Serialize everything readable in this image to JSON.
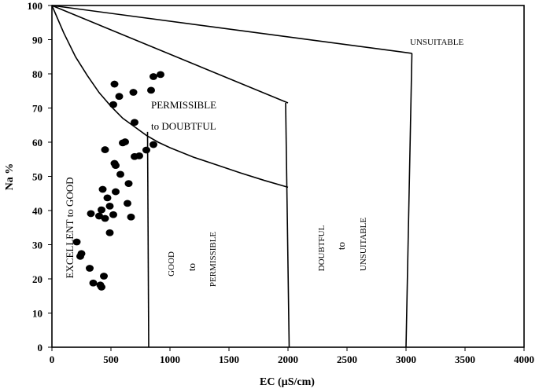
{
  "chart_data": {
    "type": "scatter",
    "xlabel": "EC (µS/cm)",
    "ylabel": "Na %",
    "xlim": [
      0,
      4000
    ],
    "ylim": [
      0,
      100
    ],
    "x_ticks": [
      0,
      500,
      1000,
      1500,
      2000,
      2500,
      3000,
      3500,
      4000
    ],
    "y_ticks": [
      0,
      10,
      20,
      30,
      40,
      50,
      60,
      70,
      80,
      90,
      100
    ],
    "x_tick_labels": [
      "0",
      "500",
      "1000",
      "1500",
      "2000",
      "2500",
      "3000",
      "3500",
      "4000"
    ],
    "y_tick_labels": [
      "0",
      "10",
      "20",
      "30",
      "40",
      "50",
      "60",
      "70",
      "80",
      "90",
      "100"
    ],
    "grid": false,
    "region_labels": {
      "excellent_to_good": "EXCELLENT to GOOD",
      "good": "GOOD",
      "good_to": "to",
      "good_permissible": "PERMISSIBLE",
      "permissible_to_doubtful_1": "PERMISSIBLE",
      "permissible_to_doubtful_2": "to DOUBTFUL",
      "doubtful": "DOUBTFUL",
      "doubtful_to": "to",
      "doubtful_unsuitable": "UNSUITABLE",
      "unsuitable": "UNSUITABLE"
    },
    "boundaries": [
      {
        "name": "curve-excellent-good",
        "points": [
          [
            0,
            100
          ],
          [
            100,
            92
          ],
          [
            200,
            85
          ],
          [
            300,
            79.5
          ],
          [
            400,
            74.5
          ],
          [
            500,
            70.5
          ],
          [
            600,
            67
          ],
          [
            700,
            64.5
          ],
          [
            800,
            62
          ],
          [
            900,
            60
          ],
          [
            1000,
            58.4
          ],
          [
            1200,
            55.6
          ],
          [
            1400,
            53.3
          ],
          [
            1600,
            51
          ],
          [
            1800,
            48.8
          ],
          [
            2000,
            46.8
          ]
        ]
      },
      {
        "name": "line-good-permissible",
        "points": [
          [
            0,
            100
          ],
          [
            2000,
            71.5
          ]
        ]
      },
      {
        "name": "line-doubtful",
        "points": [
          [
            0,
            100
          ],
          [
            3050,
            86
          ]
        ]
      },
      {
        "name": "vertical-800",
        "points": [
          [
            810,
            63
          ],
          [
            820,
            0
          ]
        ]
      },
      {
        "name": "vertical-2000",
        "points": [
          [
            1980,
            71.5
          ],
          [
            2010,
            0
          ]
        ]
      },
      {
        "name": "vertical-3000",
        "points": [
          [
            3050,
            86
          ],
          [
            3000,
            0
          ]
        ]
      }
    ],
    "points": [
      [
        920,
        79.8
      ],
      [
        860,
        79.2
      ],
      [
        530,
        77
      ],
      [
        840,
        75.2
      ],
      [
        690,
        74.6
      ],
      [
        570,
        73.4
      ],
      [
        520,
        71
      ],
      [
        700,
        65.8
      ],
      [
        620,
        60.1
      ],
      [
        600,
        59.8
      ],
      [
        860,
        59.3
      ],
      [
        450,
        57.8
      ],
      [
        800,
        57.7
      ],
      [
        740,
        56
      ],
      [
        700,
        55.8
      ],
      [
        530,
        53.8
      ],
      [
        540,
        53.2
      ],
      [
        580,
        50.6
      ],
      [
        650,
        47.9
      ],
      [
        430,
        46.2
      ],
      [
        540,
        45.5
      ],
      [
        470,
        43.7
      ],
      [
        490,
        41.3
      ],
      [
        640,
        42.1
      ],
      [
        420,
        40.2
      ],
      [
        330,
        39.1
      ],
      [
        520,
        38.8
      ],
      [
        400,
        38.4
      ],
      [
        450,
        37.7
      ],
      [
        670,
        38.1
      ],
      [
        490,
        33.5
      ],
      [
        210,
        30.8
      ],
      [
        250,
        27.4
      ],
      [
        240,
        26.6
      ],
      [
        320,
        23.1
      ],
      [
        440,
        20.8
      ],
      [
        350,
        18.8
      ],
      [
        410,
        18.2
      ],
      [
        420,
        17.6
      ]
    ]
  }
}
